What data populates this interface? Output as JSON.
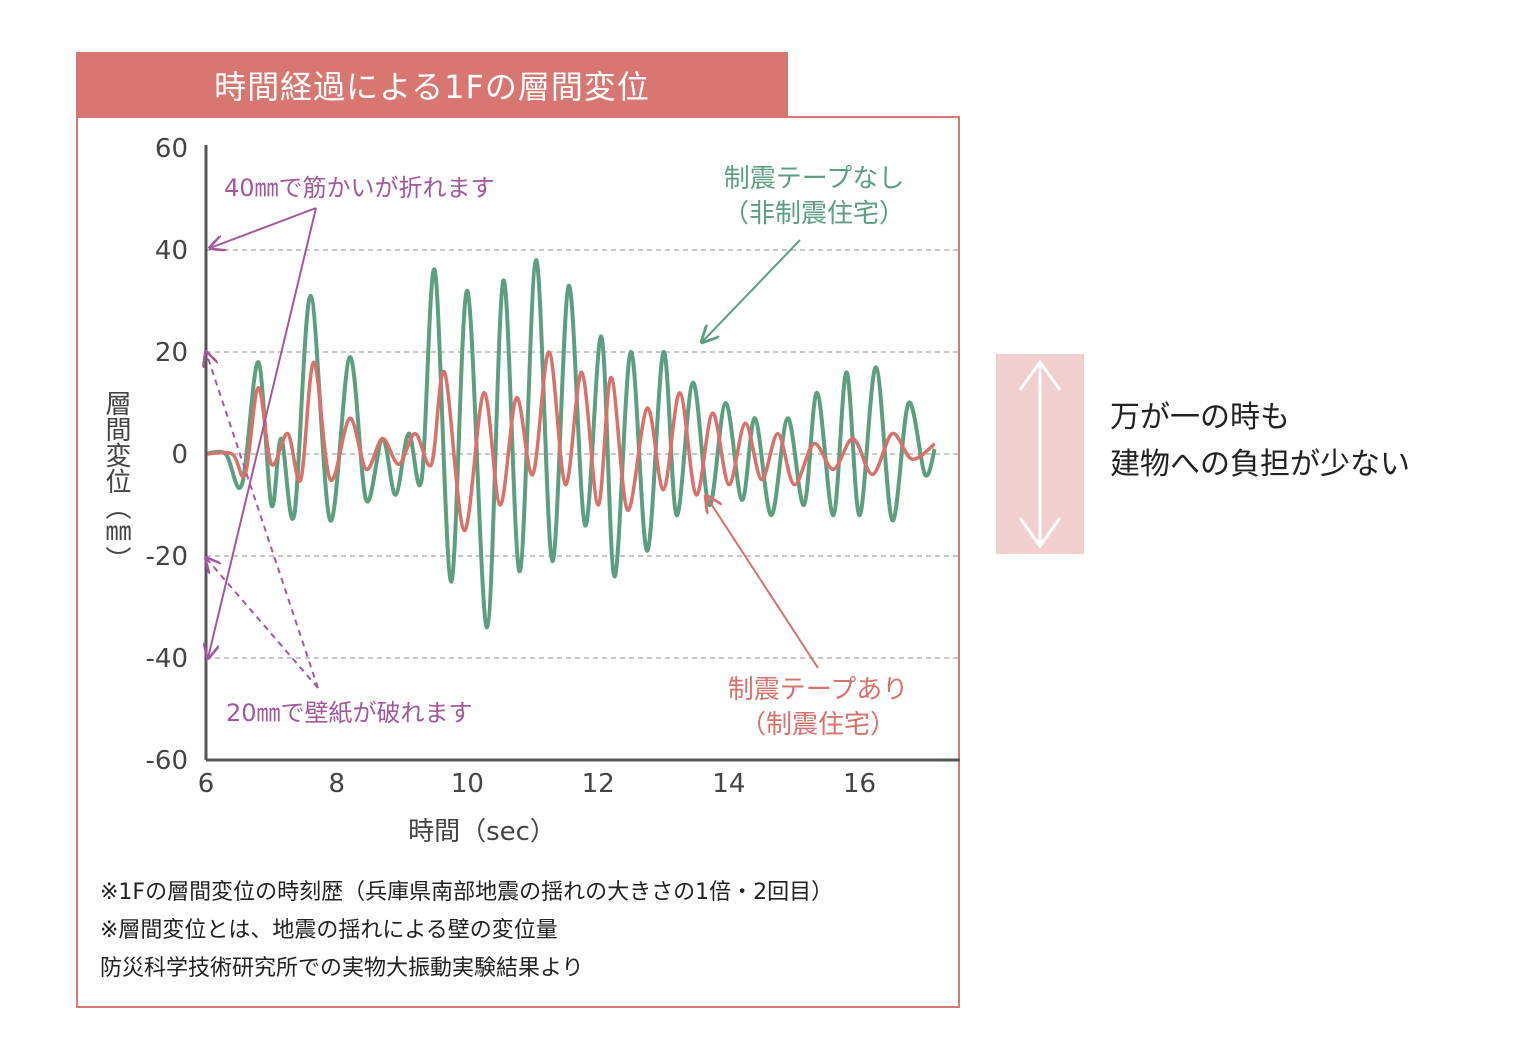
{
  "title": "時間経過による1Fの層間変位",
  "side_caption": {
    "line1": "万が一の時も",
    "line2": "建物への負担が少ない"
  },
  "notes": [
    "※1Fの層間変位の時刻歴（兵庫県南部地震の揺れの大きさの1倍・2回目）",
    "※層間変位とは、地震の揺れによる壁の変位量",
    "防災科学技術研究所での実物大振動実験結果より"
  ],
  "annotations": {
    "brace_40": "40㎜で筋かいが折れます",
    "wall_20": "20㎜で壁紙が破れます",
    "green_line1": "制震テープなし",
    "green_line2": "（非制震住宅）",
    "red_line1": "制震テープあり",
    "red_line2": "（制震住宅）"
  },
  "colors": {
    "accent": "#d87672",
    "green": "#5e9e80",
    "red": "#d8706c",
    "purple": "#a2589a",
    "arrow_box": "#f2cfcf"
  },
  "chart_data": {
    "type": "line",
    "xlabel": "時間（sec）",
    "ylabel": "層間変位（㎜）",
    "xlim": [
      6,
      17.2
    ],
    "ylim": [
      -60,
      60
    ],
    "x_ticks": [
      6,
      8,
      10,
      12,
      14,
      16
    ],
    "x_tick_labels": [
      "6",
      "8",
      "10",
      "12",
      "14",
      "16"
    ],
    "y_ticks": [
      60,
      40,
      20,
      0,
      -20,
      -40,
      -60
    ],
    "y_tick_labels": [
      "60",
      "40",
      "20",
      "0",
      "-20",
      "-40",
      "-60"
    ],
    "grid": "horizontal-dashed",
    "series": [
      {
        "name": "制震テープなし（非制震住宅）",
        "color": "#5e9e80",
        "x": [
          6.0,
          6.3,
          6.55,
          6.8,
          7.0,
          7.15,
          7.35,
          7.6,
          7.9,
          8.2,
          8.45,
          8.7,
          8.9,
          9.1,
          9.3,
          9.5,
          9.75,
          10.0,
          10.3,
          10.55,
          10.8,
          11.05,
          11.3,
          11.55,
          11.8,
          12.05,
          12.25,
          12.5,
          12.75,
          13.0,
          13.2,
          13.45,
          13.7,
          13.95,
          14.2,
          14.4,
          14.65,
          14.9,
          15.15,
          15.35,
          15.6,
          15.8,
          16.0,
          16.25,
          16.5,
          16.75,
          17.0,
          17.15
        ],
        "y": [
          0,
          0,
          -6,
          18,
          -10,
          3,
          -12,
          31,
          -13,
          19,
          -9,
          3,
          -8,
          4,
          -5,
          36,
          -25,
          32,
          -34,
          34,
          -23,
          38,
          -21,
          33,
          -14,
          23,
          -24,
          20,
          -19,
          20,
          -12,
          14,
          -10,
          10,
          -9,
          7,
          -12,
          7,
          -10,
          12,
          -12,
          16,
          -12,
          17,
          -13,
          10,
          -4,
          1
        ]
      },
      {
        "name": "制震テープあり（制震住宅）",
        "color": "#d8706c",
        "x": [
          6.0,
          6.4,
          6.6,
          6.8,
          7.0,
          7.25,
          7.45,
          7.65,
          7.9,
          8.2,
          8.45,
          8.7,
          8.95,
          9.2,
          9.45,
          9.65,
          9.95,
          10.25,
          10.5,
          10.75,
          11.0,
          11.25,
          11.5,
          11.75,
          12.0,
          12.2,
          12.45,
          12.75,
          13.0,
          13.25,
          13.5,
          13.75,
          14.0,
          14.25,
          14.5,
          14.75,
          15.0,
          15.3,
          15.6,
          15.9,
          16.2,
          16.5,
          16.8,
          17.15
        ],
        "y": [
          0,
          0,
          -4,
          13,
          -2,
          4,
          -5,
          18,
          -5,
          7,
          -3,
          3,
          -2,
          4,
          -2,
          16,
          -15,
          12,
          -10,
          11,
          -4,
          20,
          -6,
          16,
          -10,
          15,
          -11,
          9,
          -7,
          12,
          -8,
          8,
          -6,
          6,
          -5,
          4,
          -6,
          2,
          -3,
          3,
          -4,
          4,
          -1,
          2
        ]
      }
    ]
  }
}
